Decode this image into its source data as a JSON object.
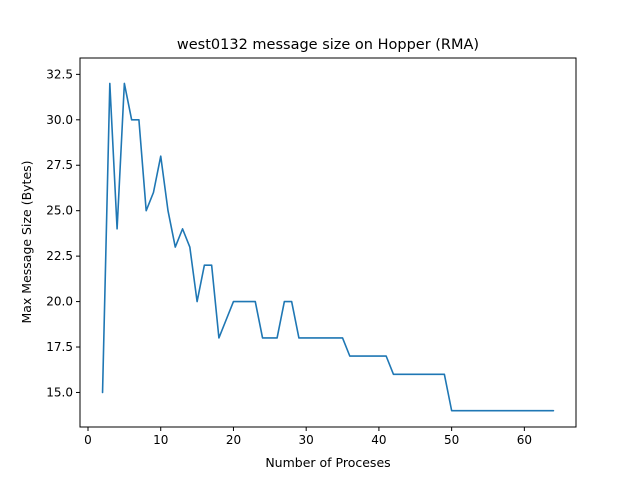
{
  "chart_data": {
    "type": "line",
    "title": "west0132 message size on Hopper (RMA)",
    "xlabel": "Number of Proceses",
    "ylabel": "Max Message Size (Bytes)",
    "xlim": [
      -1.1,
      67.1
    ],
    "ylim": [
      13.1,
      33.4
    ],
    "xticks": [
      0,
      10,
      20,
      30,
      40,
      50,
      60
    ],
    "xtick_labels": [
      "0",
      "10",
      "20",
      "30",
      "40",
      "50",
      "60"
    ],
    "yticks": [
      15.0,
      17.5,
      20.0,
      22.5,
      25.0,
      27.5,
      30.0,
      32.5
    ],
    "ytick_labels": [
      "15.0",
      "17.5",
      "20.0",
      "22.5",
      "25.0",
      "27.5",
      "30.0",
      "32.5"
    ],
    "grid": false,
    "color": "#1f77b4",
    "series": [
      {
        "x": [
          2,
          3,
          4,
          5,
          6,
          7,
          8,
          9,
          10,
          11,
          12,
          13,
          14,
          15,
          16,
          17,
          18,
          19,
          20,
          21,
          22,
          23,
          24,
          25,
          26,
          27,
          28,
          29,
          30,
          31,
          32,
          33,
          34,
          35,
          36,
          37,
          38,
          39,
          40,
          41,
          42,
          43,
          44,
          45,
          46,
          47,
          48,
          49,
          50,
          51,
          52,
          53,
          54,
          55,
          56,
          57,
          58,
          59,
          60,
          61,
          62,
          63,
          64
        ],
        "values": [
          15,
          32,
          24,
          32,
          30,
          30,
          25,
          26,
          28,
          25,
          23,
          24,
          23,
          20,
          22,
          22,
          18,
          19,
          20,
          20,
          20,
          20,
          18,
          18,
          18,
          20,
          20,
          18,
          18,
          18,
          18,
          18,
          18,
          18,
          17,
          17,
          17,
          17,
          17,
          17,
          16,
          16,
          16,
          16,
          16,
          16,
          16,
          16,
          14,
          14,
          14,
          14,
          14,
          14,
          14,
          14,
          14,
          14,
          14,
          14,
          14,
          14,
          14
        ]
      }
    ]
  }
}
